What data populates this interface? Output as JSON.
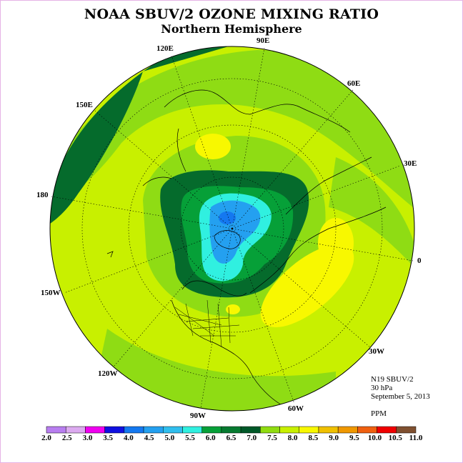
{
  "title": "NOAA SBUV/2 OZONE MIXING RATIO",
  "subtitle": "Northern Hemisphere",
  "info": {
    "satellite": "N19 SBUV/2",
    "level": "30 hPa",
    "date": "September 5, 2013",
    "units": "PPM"
  },
  "longitude_labels": {
    "lon_90e": "90E",
    "lon_60e": "60E",
    "lon_30e": "30E",
    "lon_0": "0",
    "lon_30w": "30W",
    "lon_60w": "60W",
    "lon_90w": "90W",
    "lon_120w": "120W",
    "lon_150w": "150W",
    "lon_180": "180",
    "lon_150e": "150E",
    "lon_120e": "120E"
  },
  "colorbar": {
    "labels": [
      "2.0",
      "2.5",
      "3.0",
      "3.5",
      "4.0",
      "4.5",
      "5.0",
      "5.5",
      "6.0",
      "6.5",
      "7.0",
      "7.5",
      "8.0",
      "8.5",
      "9.0",
      "9.5",
      "10.0",
      "10.5",
      "11.0"
    ],
    "colors": [
      "#b87ef0",
      "#dcaaf0",
      "#f000f0",
      "#1010e0",
      "#1478f0",
      "#24a0f0",
      "#30beee",
      "#30f0e0",
      "#06a038",
      "#067a30",
      "#005828",
      "#90dc10",
      "#c8f000",
      "#f8f800",
      "#f0c000",
      "#f09800",
      "#f06010",
      "#f00000",
      "#805030"
    ]
  },
  "colors": {
    "ocean_green_dark": "#056b2c",
    "green": "#7fd82a",
    "yellow_green": "#c8f000",
    "yellow": "#f8f800",
    "cyan": "#30f0e0",
    "light_blue": "#24a0f0"
  }
}
